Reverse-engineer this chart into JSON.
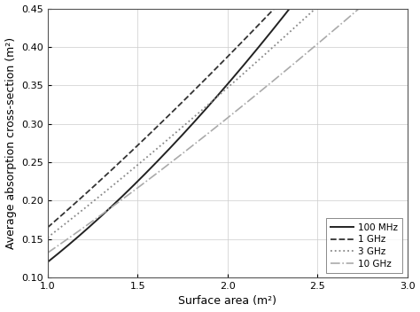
{
  "xlabel": "Surface area (m²)",
  "ylabel": "Average absorption cross-section (m²)",
  "xlim": [
    1,
    3
  ],
  "ylim": [
    0.1,
    0.45
  ],
  "xticks": [
    1.0,
    1.5,
    2.0,
    2.5,
    3.0
  ],
  "yticks": [
    0.1,
    0.15,
    0.2,
    0.25,
    0.3,
    0.35,
    0.4,
    0.45
  ],
  "line_params": [
    {
      "label": "100 MHz",
      "linestyle": "solid",
      "color": "#222222",
      "linewidth": 1.4,
      "a": 0.12,
      "b": 1.55
    },
    {
      "label": "1 GHz",
      "linestyle": "dashed",
      "color": "#333333",
      "linewidth": 1.3,
      "a": 0.165,
      "b": 1.23
    },
    {
      "label": "3 GHz",
      "linestyle": "dotted",
      "color": "#888888",
      "linewidth": 1.3,
      "a": 0.152,
      "b": 1.19
    },
    {
      "label": "10 GHz",
      "linestyle": "dashdot",
      "color": "#aaaaaa",
      "linewidth": 1.2,
      "a": 0.132,
      "b": 1.22
    }
  ],
  "legend_loc": "lower right",
  "grid": true,
  "background_color": "#ffffff"
}
